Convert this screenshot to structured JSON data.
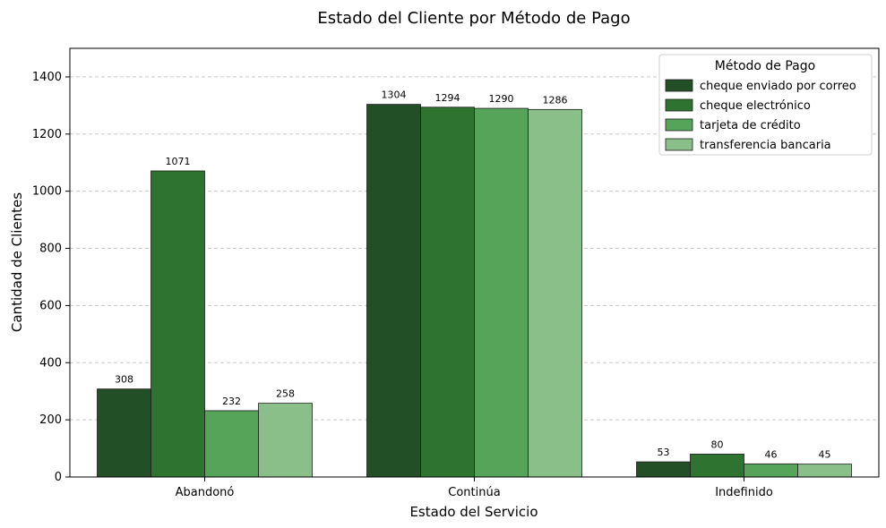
{
  "chart_data": {
    "type": "bar",
    "title": "Estado del Cliente por Método de Pago",
    "xlabel": "Estado del Servicio",
    "ylabel": "Cantidad de Clientes",
    "categories": [
      "Abandonó",
      "Continúa",
      "Indefinido"
    ],
    "series": [
      {
        "name": "cheque enviado por correo",
        "color": "#234f27",
        "values": [
          308,
          1304,
          53
        ]
      },
      {
        "name": "cheque electrónico",
        "color": "#2e7430",
        "values": [
          1071,
          1294,
          80
        ]
      },
      {
        "name": "tarjeta de crédito",
        "color": "#56a35a",
        "values": [
          232,
          1290,
          46
        ]
      },
      {
        "name": "transferencia bancaria",
        "color": "#8bbf8a",
        "values": [
          258,
          1286,
          45
        ]
      }
    ],
    "ylim": [
      0,
      1500
    ],
    "yticks": [
      0,
      200,
      400,
      600,
      800,
      1000,
      1200,
      1400
    ],
    "grid": "y-dashed",
    "legend": {
      "title": "Método de Pago",
      "placement": "top-right"
    }
  }
}
